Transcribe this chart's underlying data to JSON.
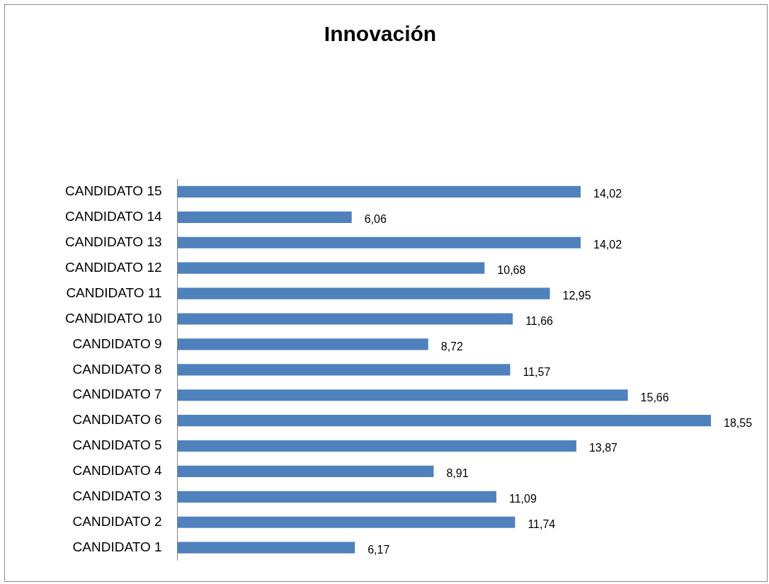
{
  "chart_data": {
    "type": "bar",
    "orientation": "horizontal",
    "title": "Innovación",
    "categories": [
      "CANDIDATO 15",
      "CANDIDATO 14",
      "CANDIDATO 13",
      "CANDIDATO 12",
      "CANDIDATO 11",
      "CANDIDATO 10",
      "CANDIDATO 9",
      "CANDIDATO 8",
      "CANDIDATO 7",
      "CANDIDATO 6",
      "CANDIDATO 5",
      "CANDIDATO 4",
      "CANDIDATO 3",
      "CANDIDATO 2",
      "CANDIDATO 1"
    ],
    "values": [
      14.02,
      6.06,
      14.02,
      10.68,
      12.95,
      11.66,
      8.72,
      11.57,
      15.66,
      18.55,
      13.87,
      8.91,
      11.09,
      11.74,
      6.17
    ],
    "value_labels": [
      "14,02",
      "6,06",
      "14,02",
      "10,68",
      "12,95",
      "11,66",
      "8,72",
      "11,57",
      "15,66",
      "18,55",
      "13,87",
      "8,91",
      "11,09",
      "11,74",
      "6,17"
    ],
    "color": "#4f81bd",
    "legend": false,
    "tick_labels": "y"
  }
}
